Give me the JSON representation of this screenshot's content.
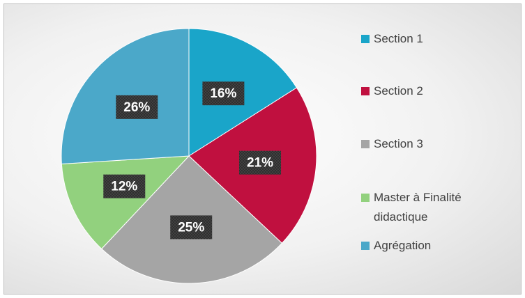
{
  "chart_data": {
    "type": "pie",
    "categories": [
      "Section 1",
      "Section 2",
      "Section 3",
      "Master à Finalité didactique",
      "Agrégation"
    ],
    "values": [
      16,
      21,
      25,
      12,
      26
    ],
    "value_labels": [
      "16%",
      "21%",
      "25%",
      "12%",
      "26%"
    ],
    "colors": [
      "#1aa5c9",
      "#c0103f",
      "#a5a5a5",
      "#92d17e",
      "#4ba8c9"
    ]
  }
}
